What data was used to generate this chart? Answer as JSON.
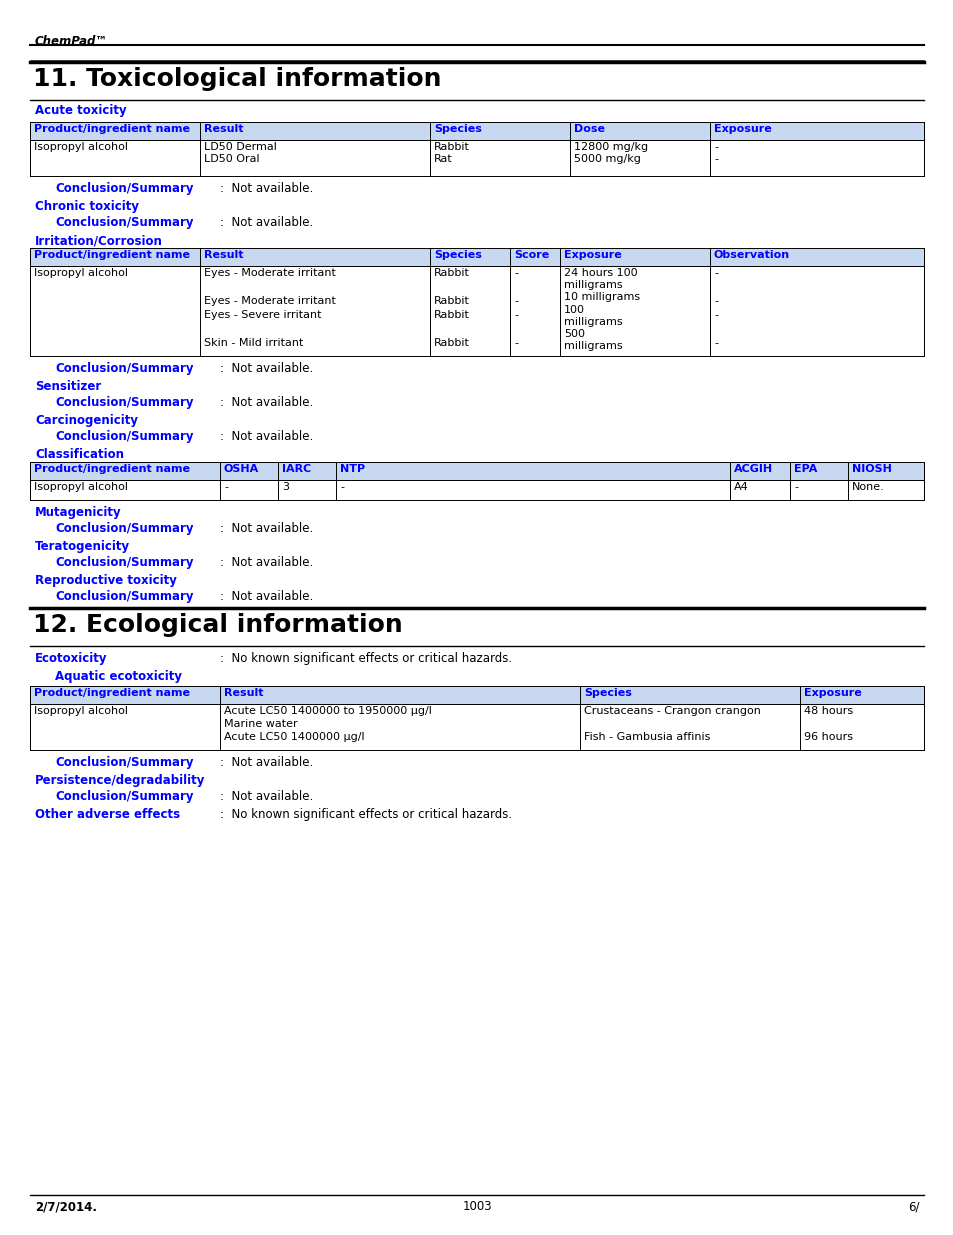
{
  "header_italic": "ChemPad™",
  "section11_title": "11. Toxicological information",
  "section12_title": "12. Ecological information",
  "blue": "#0000FF",
  "black": "#000000",
  "white": "#FFFFFF",
  "table_header_bg": "#C8D8F0",
  "footer_left": "2/7/2014.",
  "footer_center": "1003",
  "footer_right": "6/"
}
